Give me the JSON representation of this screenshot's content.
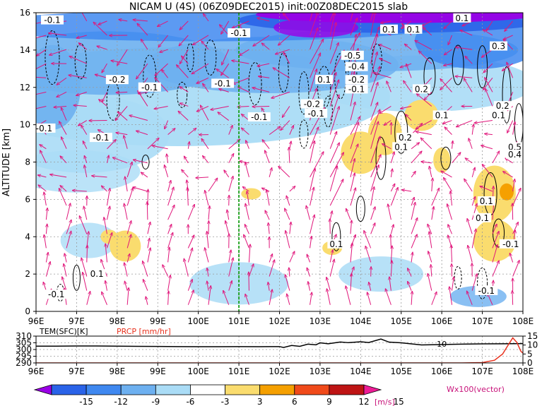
{
  "title": "NICAM U (4S) (06Z09DEC2015) init:00Z08DEC2015 slab",
  "chart_data": [
    {
      "type": "heatmap",
      "title": "NICAM U (4S) (06Z09DEC2015) init:00Z08DEC2015 slab",
      "ylabel": "ALTITUDE [km]",
      "xlim": [
        96,
        108
      ],
      "ylim": [
        0,
        16
      ],
      "grid": true,
      "x_ticks": [
        "96E",
        "97E",
        "98E",
        "99E",
        "100E",
        "101E",
        "102E",
        "103E",
        "104E",
        "105E",
        "106E",
        "107E",
        "108E"
      ],
      "y_ticks": [
        "0",
        "2",
        "4",
        "6",
        "8",
        "10",
        "12",
        "14",
        "16"
      ],
      "marker_longitude": 101.0,
      "contour_labels": [
        {
          "text": "-0.1",
          "x": 96.4,
          "y": 15.6
        },
        {
          "text": "-0.1",
          "x": 101.0,
          "y": 14.9
        },
        {
          "text": "0.1",
          "x": 106.5,
          "y": 15.7
        },
        {
          "text": "0.1",
          "x": 104.7,
          "y": 15.1
        },
        {
          "text": "0.1",
          "x": 105.3,
          "y": 15.1
        },
        {
          "text": "0.3",
          "x": 107.4,
          "y": 14.2
        },
        {
          "text": "-0.5",
          "x": 103.8,
          "y": 13.7
        },
        {
          "text": "-0.4",
          "x": 103.9,
          "y": 13.1
        },
        {
          "text": "-0.2",
          "x": 98.0,
          "y": 12.4
        },
        {
          "text": "-0.1",
          "x": 98.8,
          "y": 12.0
        },
        {
          "text": "-0.1",
          "x": 100.6,
          "y": 12.2
        },
        {
          "text": "-0.2",
          "x": 103.9,
          "y": 12.4
        },
        {
          "text": "-0.1",
          "x": 103.9,
          "y": 11.9
        },
        {
          "text": "0.1",
          "x": 103.1,
          "y": 12.4
        },
        {
          "text": "0.2",
          "x": 105.5,
          "y": 11.9
        },
        {
          "text": "-0.2",
          "x": 102.8,
          "y": 11.1
        },
        {
          "text": "-0.1",
          "x": 102.9,
          "y": 10.6
        },
        {
          "text": "-0.1",
          "x": 101.5,
          "y": 10.4
        },
        {
          "text": "0.1",
          "x": 106.0,
          "y": 10.5
        },
        {
          "text": "0.2",
          "x": 107.5,
          "y": 11.0
        },
        {
          "text": "0.1",
          "x": 107.4,
          "y": 10.5
        },
        {
          "text": "-0.1",
          "x": 96.2,
          "y": 9.8
        },
        {
          "text": "-0.1",
          "x": 97.6,
          "y": 9.3
        },
        {
          "text": "0.2",
          "x": 105.1,
          "y": 9.3
        },
        {
          "text": "0.1",
          "x": 105.0,
          "y": 8.8
        },
        {
          "text": "0.5",
          "x": 107.8,
          "y": 8.8
        },
        {
          "text": "0.4",
          "x": 107.8,
          "y": 8.4
        },
        {
          "text": "0.1",
          "x": 107.1,
          "y": 5.9
        },
        {
          "text": "0.1",
          "x": 107.0,
          "y": 5.0
        },
        {
          "text": "-0.1",
          "x": 107.7,
          "y": 3.6
        },
        {
          "text": "0.1",
          "x": 103.4,
          "y": 3.6
        },
        {
          "text": "0.1",
          "x": 97.5,
          "y": 2.0
        },
        {
          "text": "-0.1",
          "x": 96.5,
          "y": 0.9
        },
        {
          "text": "-0.1",
          "x": 107.1,
          "y": 1.1
        }
      ]
    },
    {
      "type": "line",
      "xlim": [
        96,
        108
      ],
      "x_ticks": [
        "96E",
        "97E",
        "98E",
        "99E",
        "100E",
        "101E",
        "102E",
        "103E",
        "104E",
        "105E",
        "106E",
        "107E",
        "108E"
      ],
      "left_axis_label": "TEM(SFC)[K]",
      "right_axis_label": "PRCP [mm/hr]",
      "left_ticks": [
        "290",
        "295",
        "300",
        "305",
        "310"
      ],
      "left_ylim": [
        290,
        310
      ],
      "right_ticks": [
        "0",
        "5",
        "10",
        "15"
      ],
      "right_ylim": [
        0,
        15
      ],
      "contour_label": "10",
      "series": [
        {
          "name": "TEM(SFC)[K]",
          "color": "#000000",
          "x": [
            96,
            96.5,
            97,
            97.5,
            98,
            98.5,
            99,
            99.5,
            100,
            100.5,
            101,
            101.5,
            102,
            102.1,
            102.3,
            102.5,
            102.7,
            102.9,
            103.0,
            103.2,
            103.5,
            103.7,
            104.0,
            104.2,
            104.5,
            104.7,
            105.0,
            105.5,
            106.0,
            106.5,
            107.0,
            107.5,
            108
          ],
          "y": [
            302.5,
            302.5,
            302.6,
            302.6,
            302.5,
            302.4,
            302.3,
            302.2,
            302.1,
            302.1,
            302.2,
            302.1,
            302.2,
            301.5,
            303.0,
            302.4,
            304.0,
            303.5,
            305.0,
            304.3,
            305.6,
            305.1,
            305.8,
            305.2,
            307.8,
            305.5,
            305.0,
            303.4,
            303.7,
            304.0,
            304.2,
            304.3,
            304.4
          ]
        },
        {
          "name": "PRCP [mm/hr]",
          "color": "#e8321e",
          "x": [
            96,
            100,
            104,
            106.5,
            107.0,
            107.3,
            107.5,
            107.65,
            107.75,
            107.85,
            107.95,
            108
          ],
          "y": [
            0,
            0,
            0,
            0,
            0.2,
            1.5,
            5.0,
            10.5,
            14.0,
            11.5,
            6.5,
            5.5
          ]
        }
      ]
    },
    {
      "type": "colorbar",
      "unit": "[m/s]",
      "ticks": [
        "-15",
        "-12",
        "-9",
        "-6",
        "-3",
        "3",
        "6",
        "9",
        "12",
        "15"
      ],
      "colors": [
        "#9a00e6",
        "#2a63e8",
        "#3f88f0",
        "#6db0f0",
        "#aadcf6",
        "#ffffff",
        "#fadc6e",
        "#f5a000",
        "#f04a1a",
        "#be1414",
        "#ee1c96"
      ],
      "vector_label": "Wx100(vector)"
    }
  ]
}
